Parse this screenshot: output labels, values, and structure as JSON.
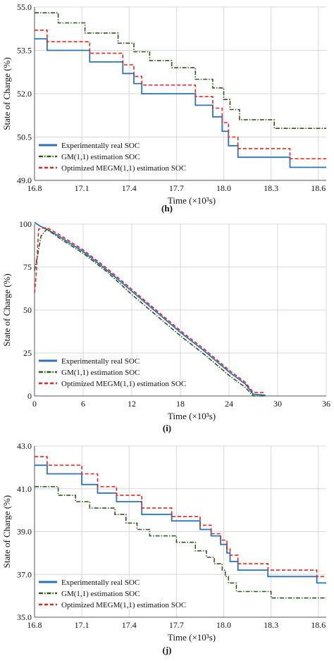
{
  "colors": {
    "real": "#2d73b8",
    "gm": "#2f5a1e",
    "megm": "#e0261f",
    "grid": "#d8d8d8",
    "axis": "#555555"
  },
  "chart_data": [
    {
      "id": "h",
      "type": "line",
      "caption": "(h)",
      "xlabel": "Time (×10³s)",
      "ylabel": "State of Charge (%)",
      "xlim": [
        16.8,
        18.65
      ],
      "ylim": [
        49.0,
        55.0
      ],
      "xticks": [
        "16.8",
        "17.1",
        "17.4",
        "17.7",
        "18.0",
        "18.3",
        "18.6"
      ],
      "yticks": [
        "49.0",
        "50.5",
        "52.0",
        "53.5",
        "55.0"
      ],
      "legend_position": "bottom-left",
      "series": [
        {
          "name": "Experimentally real SOC",
          "style": "solid",
          "points": [
            [
              16.8,
              53.9
            ],
            [
              16.88,
              53.9
            ],
            [
              16.88,
              53.5
            ],
            [
              17.15,
              53.5
            ],
            [
              17.15,
              53.1
            ],
            [
              17.36,
              53.1
            ],
            [
              17.36,
              52.7
            ],
            [
              17.43,
              52.7
            ],
            [
              17.43,
              52.35
            ],
            [
              17.48,
              52.35
            ],
            [
              17.48,
              52.0
            ],
            [
              17.82,
              52.0
            ],
            [
              17.82,
              51.6
            ],
            [
              17.93,
              51.6
            ],
            [
              17.93,
              51.2
            ],
            [
              17.99,
              51.2
            ],
            [
              17.99,
              50.7
            ],
            [
              18.03,
              50.7
            ],
            [
              18.03,
              50.2
            ],
            [
              18.09,
              50.2
            ],
            [
              18.09,
              49.8
            ],
            [
              18.42,
              49.8
            ],
            [
              18.42,
              49.45
            ],
            [
              18.65,
              49.45
            ]
          ]
        },
        {
          "name": "GM(1,1) estimation SOC",
          "style": "dashdot",
          "points": [
            [
              16.8,
              54.8
            ],
            [
              16.95,
              54.8
            ],
            [
              16.95,
              54.45
            ],
            [
              17.12,
              54.45
            ],
            [
              17.12,
              54.1
            ],
            [
              17.33,
              54.1
            ],
            [
              17.33,
              53.75
            ],
            [
              17.43,
              53.75
            ],
            [
              17.43,
              53.45
            ],
            [
              17.53,
              53.45
            ],
            [
              17.53,
              53.15
            ],
            [
              17.67,
              53.15
            ],
            [
              17.67,
              52.9
            ],
            [
              17.82,
              52.9
            ],
            [
              17.82,
              52.5
            ],
            [
              17.93,
              52.5
            ],
            [
              17.93,
              52.2
            ],
            [
              18.0,
              52.2
            ],
            [
              18.0,
              51.8
            ],
            [
              18.04,
              51.8
            ],
            [
              18.04,
              51.45
            ],
            [
              18.1,
              51.45
            ],
            [
              18.1,
              51.1
            ],
            [
              18.32,
              51.1
            ],
            [
              18.32,
              50.8
            ],
            [
              18.65,
              50.8
            ]
          ]
        },
        {
          "name": "Optimized MEGM(1,1) estimation SOC",
          "style": "dashed",
          "points": [
            [
              16.8,
              54.2
            ],
            [
              16.88,
              54.2
            ],
            [
              16.88,
              53.8
            ],
            [
              17.15,
              53.8
            ],
            [
              17.15,
              53.4
            ],
            [
              17.36,
              53.4
            ],
            [
              17.36,
              53.0
            ],
            [
              17.43,
              53.0
            ],
            [
              17.43,
              52.6
            ],
            [
              17.48,
              52.6
            ],
            [
              17.48,
              52.3
            ],
            [
              17.82,
              52.3
            ],
            [
              17.82,
              51.9
            ],
            [
              17.93,
              51.9
            ],
            [
              17.93,
              51.5
            ],
            [
              17.99,
              51.5
            ],
            [
              17.99,
              51.0
            ],
            [
              18.03,
              51.0
            ],
            [
              18.03,
              50.5
            ],
            [
              18.09,
              50.5
            ],
            [
              18.09,
              50.1
            ],
            [
              18.42,
              50.1
            ],
            [
              18.42,
              49.75
            ],
            [
              18.65,
              49.75
            ]
          ]
        }
      ]
    },
    {
      "id": "i",
      "type": "line",
      "caption": "(i)",
      "xlabel": "Time (×10³s)",
      "ylabel": "State of Charge (%)",
      "xlim": [
        0,
        36
      ],
      "ylim": [
        0,
        100
      ],
      "xticks": [
        "0",
        "6",
        "12",
        "18",
        "24",
        "30",
        "36"
      ],
      "yticks": [
        "0",
        "25",
        "50",
        "75",
        "100"
      ],
      "legend_position": "bottom-left",
      "series": [
        {
          "name": "Experimentally real SOC",
          "style": "solid",
          "points": [
            [
              0,
              101
            ],
            [
              0.6,
              99
            ],
            [
              1.5,
              97
            ],
            [
              3,
              93
            ],
            [
              6,
              84
            ],
            [
              9,
              73
            ],
            [
              12,
              61
            ],
            [
              15,
              49
            ],
            [
              18,
              37
            ],
            [
              21,
              26
            ],
            [
              24,
              14
            ],
            [
              26,
              7
            ],
            [
              27,
              1
            ],
            [
              28.5,
              0.5
            ]
          ]
        },
        {
          "name": "GM(1,1) estimation SOC",
          "style": "dashdot",
          "points": [
            [
              0,
              73
            ],
            [
              0.3,
              80
            ],
            [
              0.8,
              93
            ],
            [
              1.5,
              97
            ],
            [
              3,
              92
            ],
            [
              6,
              83
            ],
            [
              9,
              72
            ],
            [
              12,
              59
            ],
            [
              15,
              47
            ],
            [
              18,
              35
            ],
            [
              21,
              24
            ],
            [
              24,
              12
            ],
            [
              26,
              5
            ],
            [
              27,
              0
            ],
            [
              28.5,
              0
            ]
          ]
        },
        {
          "name": "Optimized MEGM(1,1) estimation SOC",
          "style": "dashed",
          "points": [
            [
              0,
              60
            ],
            [
              0.2,
              70
            ],
            [
              0.5,
              97
            ],
            [
              1.5,
              98
            ],
            [
              3,
              94
            ],
            [
              6,
              85
            ],
            [
              9,
              74
            ],
            [
              12,
              62
            ],
            [
              15,
              50
            ],
            [
              18,
              38
            ],
            [
              21,
              27
            ],
            [
              24,
              15
            ],
            [
              26,
              8
            ],
            [
              27,
              2
            ],
            [
              28.5,
              2
            ]
          ]
        }
      ]
    },
    {
      "id": "j",
      "type": "line",
      "caption": "(j)",
      "xlabel": "Time (×10³s)",
      "ylabel": "State of Charge (%)",
      "xlim": [
        16.8,
        18.65
      ],
      "ylim": [
        35.0,
        43.0
      ],
      "xticks": [
        "16.8",
        "17.1",
        "17.4",
        "17.7",
        "18.0",
        "18.3",
        "18.6"
      ],
      "yticks": [
        "35.0",
        "37.0",
        "39.0",
        "41.0",
        "43.0"
      ],
      "legend_position": "bottom-left",
      "series": [
        {
          "name": "Experimentally real SOC",
          "style": "solid",
          "points": [
            [
              16.8,
              42.1
            ],
            [
              16.88,
              42.1
            ],
            [
              16.88,
              41.7
            ],
            [
              17.1,
              41.7
            ],
            [
              17.1,
              41.2
            ],
            [
              17.2,
              41.2
            ],
            [
              17.2,
              40.8
            ],
            [
              17.32,
              40.8
            ],
            [
              17.32,
              40.4
            ],
            [
              17.48,
              40.4
            ],
            [
              17.48,
              39.8
            ],
            [
              17.67,
              39.8
            ],
            [
              17.67,
              39.5
            ],
            [
              17.85,
              39.5
            ],
            [
              17.85,
              39.1
            ],
            [
              17.92,
              39.1
            ],
            [
              17.92,
              38.8
            ],
            [
              17.98,
              38.8
            ],
            [
              17.98,
              38.4
            ],
            [
              18.02,
              38.4
            ],
            [
              18.02,
              38.0
            ],
            [
              18.04,
              38.0
            ],
            [
              18.04,
              37.6
            ],
            [
              18.09,
              37.6
            ],
            [
              18.09,
              37.2
            ],
            [
              18.28,
              37.2
            ],
            [
              18.28,
              36.9
            ],
            [
              18.59,
              36.9
            ],
            [
              18.59,
              36.6
            ],
            [
              18.65,
              36.6
            ]
          ]
        },
        {
          "name": "GM(1,1) estimation SOC",
          "style": "dashdot",
          "points": [
            [
              16.8,
              41.1
            ],
            [
              16.95,
              41.1
            ],
            [
              16.95,
              40.7
            ],
            [
              17.06,
              40.7
            ],
            [
              17.06,
              40.4
            ],
            [
              17.15,
              40.4
            ],
            [
              17.15,
              40.1
            ],
            [
              17.31,
              40.1
            ],
            [
              17.31,
              39.8
            ],
            [
              17.38,
              39.8
            ],
            [
              17.38,
              39.4
            ],
            [
              17.45,
              39.4
            ],
            [
              17.45,
              39.1
            ],
            [
              17.53,
              39.1
            ],
            [
              17.53,
              38.8
            ],
            [
              17.7,
              38.8
            ],
            [
              17.7,
              38.5
            ],
            [
              17.82,
              38.5
            ],
            [
              17.82,
              38.1
            ],
            [
              17.89,
              38.1
            ],
            [
              17.89,
              37.8
            ],
            [
              17.94,
              37.8
            ],
            [
              17.94,
              37.5
            ],
            [
              17.99,
              37.5
            ],
            [
              17.99,
              37.2
            ],
            [
              18.01,
              37.2
            ],
            [
              18.01,
              36.9
            ],
            [
              18.03,
              36.9
            ],
            [
              18.03,
              36.6
            ],
            [
              18.08,
              36.6
            ],
            [
              18.08,
              36.2
            ],
            [
              18.3,
              36.2
            ],
            [
              18.3,
              35.9
            ],
            [
              18.65,
              35.9
            ]
          ]
        },
        {
          "name": "Optimized MEGM(1,1) estimation SOC",
          "style": "dashed",
          "points": [
            [
              16.8,
              42.5
            ],
            [
              16.88,
              42.5
            ],
            [
              16.88,
              42.1
            ],
            [
              17.1,
              42.1
            ],
            [
              17.1,
              41.7
            ],
            [
              17.2,
              41.7
            ],
            [
              17.2,
              41.1
            ],
            [
              17.32,
              41.1
            ],
            [
              17.32,
              40.7
            ],
            [
              17.48,
              40.7
            ],
            [
              17.48,
              40.1
            ],
            [
              17.67,
              40.1
            ],
            [
              17.67,
              39.7
            ],
            [
              17.85,
              39.7
            ],
            [
              17.85,
              39.3
            ],
            [
              17.92,
              39.3
            ],
            [
              17.92,
              38.9
            ],
            [
              17.98,
              38.9
            ],
            [
              17.98,
              38.6
            ],
            [
              18.02,
              38.6
            ],
            [
              18.02,
              38.2
            ],
            [
              18.04,
              38.2
            ],
            [
              18.04,
              37.9
            ],
            [
              18.09,
              37.9
            ],
            [
              18.09,
              37.5
            ],
            [
              18.28,
              37.5
            ],
            [
              18.28,
              37.2
            ],
            [
              18.59,
              37.2
            ],
            [
              18.59,
              36.9
            ],
            [
              18.65,
              36.9
            ]
          ]
        }
      ]
    }
  ]
}
